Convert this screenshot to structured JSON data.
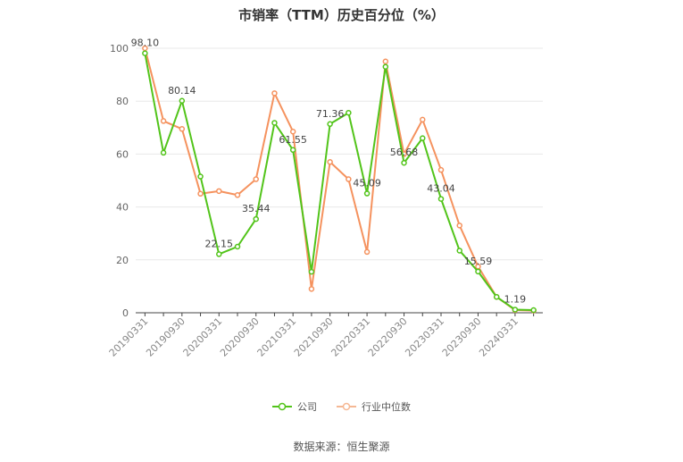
{
  "chart_data": {
    "type": "line",
    "title": "市销率（TTM）历史百分位（%）",
    "x": [
      "20190331",
      "20190630",
      "20190930",
      "20191231",
      "20200331",
      "20200630",
      "20200930",
      "20201231",
      "20210331",
      "20210630",
      "20210930",
      "20211231",
      "20220331",
      "20220630",
      "20220930",
      "20221231",
      "20230331",
      "20230630",
      "20230930",
      "20231231",
      "20240331",
      "20240630"
    ],
    "x_tick_labels": [
      "20190331",
      "20190930",
      "20200331",
      "20200930",
      "20210331",
      "20210930",
      "20220331",
      "20220930",
      "20230331",
      "20230930",
      "20240331"
    ],
    "ylim": [
      0,
      100
    ],
    "yticks": [
      0,
      20,
      40,
      60,
      80,
      100
    ],
    "grid": true,
    "legend_position": "bottom",
    "series": [
      {
        "name": "公司",
        "color": "#52c41a",
        "values": [
          98.1,
          60.5,
          80.14,
          51.5,
          22.15,
          25.0,
          35.44,
          71.8,
          61.55,
          15.5,
          71.36,
          75.6,
          45.09,
          93.0,
          56.68,
          66.0,
          43.04,
          23.5,
          15.59,
          6.0,
          1.19,
          1.0
        ],
        "labels": {
          "0": "98.10",
          "2": "80.14",
          "4": "22.15",
          "6": "35.44",
          "8": "61.55",
          "10": "71.36",
          "12": "45.09",
          "14": "56.68",
          "16": "43.04",
          "18": "15.59",
          "20": "1.19"
        }
      },
      {
        "name": "行业中位数",
        "color": "#f5925e",
        "values": [
          100.0,
          72.5,
          69.5,
          45.0,
          46.0,
          44.5,
          50.5,
          83.0,
          68.5,
          9.0,
          57.0,
          50.5,
          23.0,
          95.0,
          60.0,
          73.0,
          54.0,
          33.0,
          17.5,
          6.0,
          1.0,
          0.8
        ]
      }
    ]
  },
  "legend": {
    "company": "公司",
    "industry": "行业中位数"
  },
  "source": "数据来源：恒生聚源"
}
